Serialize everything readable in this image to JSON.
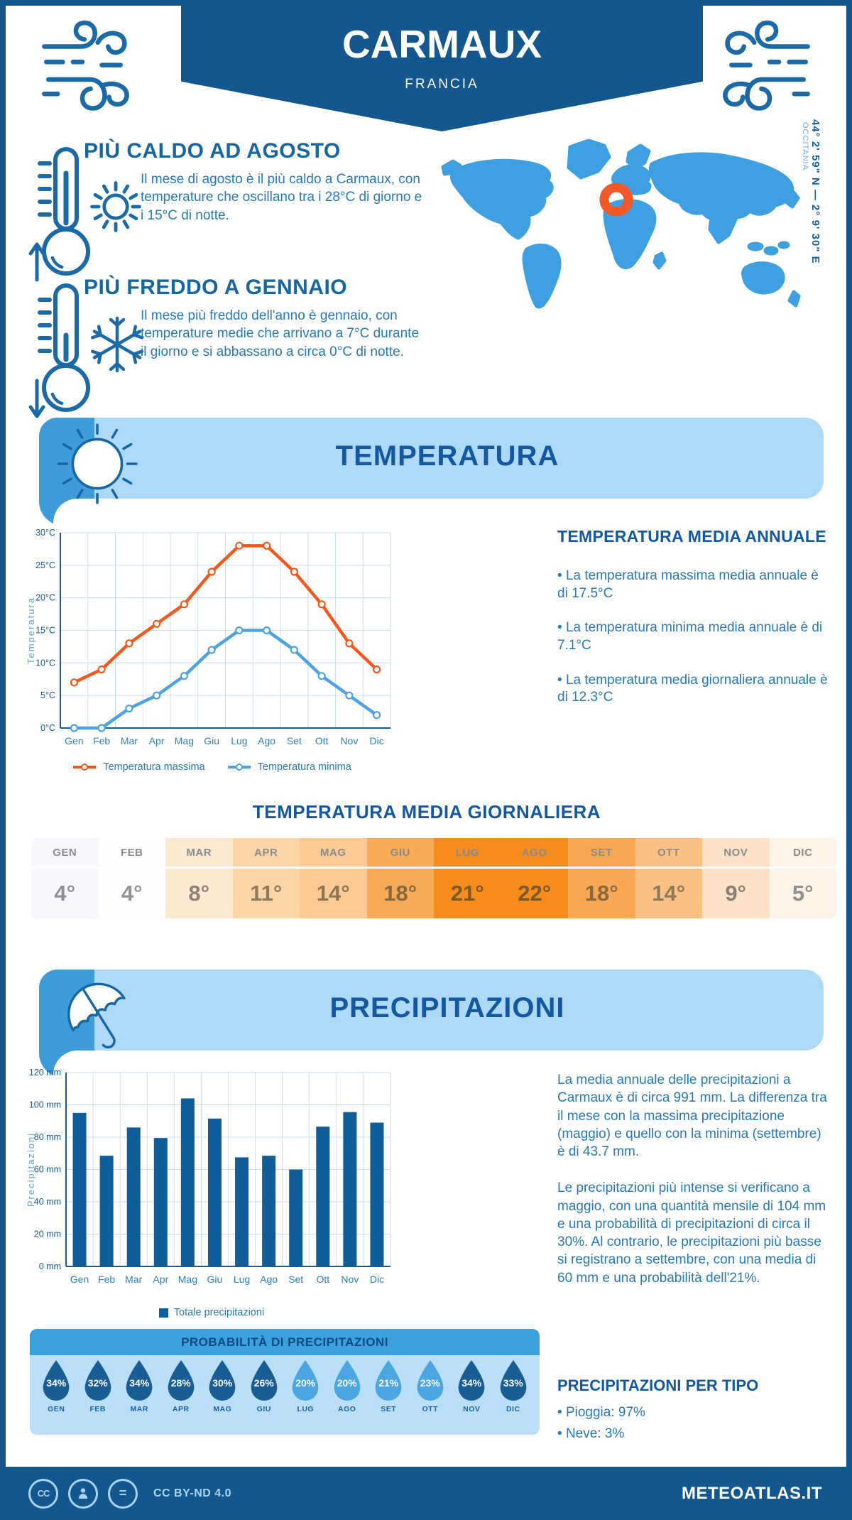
{
  "header": {
    "title": "CARMAUX",
    "subtitle": "FRANCIA"
  },
  "map": {
    "coordinates": "44° 2' 59\" N — 2° 9' 30\" E",
    "region": "OCCITANIA",
    "map_color": "#3FA0E1",
    "marker_color": "#F1592B"
  },
  "highlights": [
    {
      "title": "PIÙ CALDO AD AGOSTO",
      "text": "Il mese di agosto è il più caldo a Carmaux, con temperature che oscillano tra i 28°C di giorno e i 15°C di notte."
    },
    {
      "title": "PIÙ FREDDO A GENNAIO",
      "text": "Il mese più freddo dell'anno è gennaio, con temperature medie che arrivano a 7°C durante il giorno e si abbassano a circa 0°C di notte."
    }
  ],
  "temperature_section": {
    "title": "TEMPERATURA",
    "annual": {
      "title": "TEMPERATURA MEDIA ANNUALE",
      "bullets": [
        "La temperatura massima media annuale è di 17.5°C",
        "La temperatura minima media annuale è di 7.1°C",
        "La temperatura media giornaliera annuale è di 12.3°C"
      ]
    },
    "daily_table": {
      "title": "TEMPERATURA MEDIA GIORNALIERA",
      "months": [
        "GEN",
        "FEB",
        "MAR",
        "APR",
        "MAG",
        "GIU",
        "LUG",
        "AGO",
        "SET",
        "OTT",
        "NOV",
        "DIC"
      ],
      "values": [
        "4°",
        "4°",
        "8°",
        "11°",
        "14°",
        "18°",
        "21°",
        "22°",
        "18°",
        "14°",
        "9°",
        "5°"
      ],
      "cell_colors": [
        "#f7f7fd",
        "#fefefe",
        "#fde9d1",
        "#fbd5a8",
        "#fbca94",
        "#f9aa55",
        "#f68b1e",
        "#f68b1e",
        "#f9a851",
        "#fbc183",
        "#fde3c5",
        "#fdf3e7"
      ],
      "text_colors": [
        "#8f8f97",
        "#929292",
        "#8c8172",
        "#8b7a5e",
        "#8a7656",
        "#87693f",
        "#7c5a26",
        "#7c5a26",
        "#87693f",
        "#8b7a5e",
        "#8c8172",
        "#90908e"
      ],
      "header_text_color": "#8b8b8b"
    }
  },
  "chart_data": [
    {
      "type": "line",
      "categories": [
        "Gen",
        "Feb",
        "Mar",
        "Apr",
        "Mag",
        "Giu",
        "Lug",
        "Ago",
        "Set",
        "Ott",
        "Nov",
        "Dic"
      ],
      "series": [
        {
          "name": "Temperatura massima",
          "color": "#F4581D",
          "values": [
            7,
            9,
            13,
            16,
            19,
            24,
            28,
            28,
            24,
            19,
            13,
            9
          ]
        },
        {
          "name": "Temperatura minima",
          "color": "#4DA2DF",
          "values": [
            0,
            0,
            3,
            5,
            8,
            12,
            15,
            15,
            12,
            8,
            5,
            2
          ]
        }
      ],
      "ylabel": "Temperatura",
      "xlabel": "",
      "ylim": [
        0,
        30
      ],
      "ytick_step": 5,
      "ytick_suffix": "°C",
      "grid": true,
      "legend_position": "bottom"
    },
    {
      "type": "bar",
      "categories": [
        "Gen",
        "Feb",
        "Mar",
        "Apr",
        "Mag",
        "Giu",
        "Lug",
        "Ago",
        "Set",
        "Ott",
        "Nov",
        "Dic"
      ],
      "series": [
        {
          "name": "Totale precipitazioni",
          "color": "#0F5E99",
          "values": [
            95,
            68.5,
            86,
            79.5,
            104,
            91.5,
            67.5,
            68.5,
            60,
            86.5,
            95.5,
            89
          ]
        }
      ],
      "ylabel": "Precipitazioni",
      "xlabel": "",
      "ylim": [
        0,
        120
      ],
      "ytick_step": 20,
      "ytick_suffix": " mm",
      "grid": true,
      "legend_position": "bottom"
    }
  ],
  "precipitation_section": {
    "title": "PRECIPITAZIONI",
    "paragraphs": [
      "La media annuale delle precipitazioni a Carmaux è di circa 991 mm. La differenza tra il mese con la massima precipitazione (maggio) e quello con la minima (settembre) è di 43.7 mm.",
      "Le precipitazioni più intense si verificano a maggio, con una quantità mensile di 104 mm e una probabilità di precipitazioni di circa il 30%. Al contrario, le precipitazioni più basse si registrano a settembre, con una media di 60 mm e una probabilità dell'21%."
    ],
    "probability": {
      "title": "PROBABILITÀ DI PRECIPITAZIONI",
      "months": [
        "GEN",
        "FEB",
        "MAR",
        "APR",
        "MAG",
        "GIU",
        "LUG",
        "AGO",
        "SET",
        "OTT",
        "NOV",
        "DIC"
      ],
      "values": [
        "34%",
        "32%",
        "34%",
        "28%",
        "30%",
        "26%",
        "20%",
        "20%",
        "21%",
        "23%",
        "34%",
        "33%"
      ],
      "dark_flags": [
        1,
        1,
        1,
        1,
        1,
        1,
        0,
        0,
        0,
        0,
        1,
        1
      ],
      "color_dark": "#1A5C94",
      "color_light": "#4AA5E0"
    },
    "by_type": {
      "title": "PRECIPITAZIONI PER TIPO",
      "items": [
        "Pioggia: 97%",
        "Neve: 3%"
      ]
    }
  },
  "footer": {
    "license": "CC BY-ND 4.0",
    "site": "METEOATLAS.IT"
  },
  "colors": {
    "primary_dark_blue": "#14578F",
    "band_light_blue": "#AFD9F8",
    "band_accent_blue": "#3E9CDB",
    "grid_blue": "#CADEEF"
  }
}
